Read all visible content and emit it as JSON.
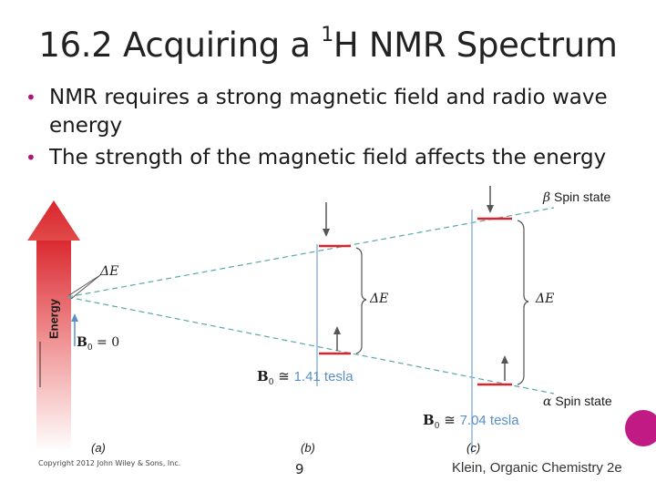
{
  "slide": {
    "title_prefix": "16.2 Acquiring a ",
    "title_sup": "1",
    "title_suffix": "H NMR Spectrum",
    "bullets": [
      "NMR requires a strong magnetic field and radio wave energy",
      "The strength of the magnetic field affects the energy"
    ]
  },
  "figure": {
    "energy_label": "Energy",
    "delta_e": "ΔE",
    "b0_symbol": "B",
    "b0_sub": "0",
    "b0_zero": " = 0",
    "b0_b_value": "1.41 tesla",
    "b0_c_value": "7.04 tesla",
    "approx": "≅",
    "beta_symbol": "β",
    "alpha_symbol": "α",
    "spin_state": " Spin state",
    "panel_a": "(a)",
    "panel_b": "(b)",
    "panel_c": "(c)",
    "colors": {
      "red": "#d9242c",
      "blue": "#5a8fc8",
      "teal": "#5aa8a8"
    }
  },
  "footer": {
    "copyright": "Copyright 2012 John Wiley & Sons, Inc.",
    "page_number": "9",
    "source": "Klein, Organic Chemistry 2e"
  }
}
